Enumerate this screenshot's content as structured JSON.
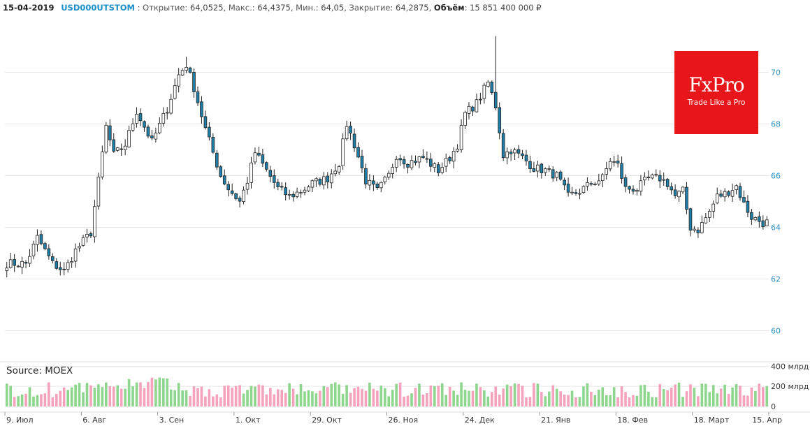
{
  "header": {
    "date": "15-04-2019",
    "ticker": "USD000UTSTOM",
    "open_label": "Открытие:",
    "open": "64,0525",
    "high_label": "Макс.:",
    "high": "64,4375",
    "low_label": "Мин.:",
    "low": "64,05",
    "close_label": "Закрытие:",
    "close": "64,2875",
    "volume_label": "Объём",
    "volume": "15 851 400 000 ₽"
  },
  "logo": {
    "brand": "FxPro",
    "tagline": "Trade Like a Pro"
  },
  "source": "Source: MOEX",
  "colors": {
    "up": "#ffffff",
    "down": "#1f7fa8",
    "vol_up": "#8ed68e",
    "vol_down": "#f5a3bd",
    "axis_text": "#2b8fc6",
    "grid": "#e6e6e6",
    "logo_bg": "#e8151b"
  },
  "chart_data": {
    "type": "candlestick",
    "price_ylim": [
      59.5,
      71.5
    ],
    "volume_ylim": [
      0,
      430
    ],
    "y_ticks": [
      {
        "value": 60,
        "label": "60"
      },
      {
        "value": 62,
        "label": "62"
      },
      {
        "value": 64,
        "label": "64"
      },
      {
        "value": 66,
        "label": "66"
      },
      {
        "value": 68,
        "label": "68"
      },
      {
        "value": 70,
        "label": "70"
      }
    ],
    "volume_ticks": [
      {
        "value": 400,
        "label": "400 млрд"
      },
      {
        "value": 200,
        "label": "200 млрд"
      },
      {
        "value": 0,
        "label": "0"
      }
    ],
    "x_ticks": [
      {
        "index": 0,
        "label": "9. Июл"
      },
      {
        "index": 20,
        "label": "6. Авг"
      },
      {
        "index": 40,
        "label": "3. Сен"
      },
      {
        "index": 60,
        "label": "1. Окт"
      },
      {
        "index": 80,
        "label": "29. Окт"
      },
      {
        "index": 100,
        "label": "26. Ноя"
      },
      {
        "index": 120,
        "label": "24. Дек"
      },
      {
        "index": 140,
        "label": "21. Янв"
      },
      {
        "index": 160,
        "label": "18. Фев"
      },
      {
        "index": 180,
        "label": "18. Март"
      },
      {
        "index": 200,
        "label": "15. Апр"
      }
    ],
    "anchors": [
      [
        0,
        62.6
      ],
      [
        5,
        62.6
      ],
      [
        8,
        63.6
      ],
      [
        12,
        62.6
      ],
      [
        15,
        62.3
      ],
      [
        18,
        63.1
      ],
      [
        22,
        63.8
      ],
      [
        24,
        65.8
      ],
      [
        26,
        67.9
      ],
      [
        28,
        66.8
      ],
      [
        31,
        67.2
      ],
      [
        34,
        68.5
      ],
      [
        38,
        67.3
      ],
      [
        42,
        68.6
      ],
      [
        45,
        69.9
      ],
      [
        47,
        70.3
      ],
      [
        49,
        69.4
      ],
      [
        52,
        67.8
      ],
      [
        56,
        66.0
      ],
      [
        58,
        65.5
      ],
      [
        61,
        65.0
      ],
      [
        63,
        65.8
      ],
      [
        65,
        66.9
      ],
      [
        68,
        66.2
      ],
      [
        71,
        65.5
      ],
      [
        74,
        65.2
      ],
      [
        77,
        65.4
      ],
      [
        80,
        65.7
      ],
      [
        84,
        65.9
      ],
      [
        87,
        66.5
      ],
      [
        89,
        68.0
      ],
      [
        91,
        67.2
      ],
      [
        94,
        65.8
      ],
      [
        97,
        65.4
      ],
      [
        100,
        66.0
      ],
      [
        102,
        66.8
      ],
      [
        105,
        66.5
      ],
      [
        109,
        66.7
      ],
      [
        113,
        66.2
      ],
      [
        116,
        66.7
      ],
      [
        118,
        67.2
      ],
      [
        120,
        68.4
      ],
      [
        123,
        68.8
      ],
      [
        126,
        69.6
      ],
      [
        128,
        68.7
      ],
      [
        130,
        66.8
      ],
      [
        132,
        67.0
      ],
      [
        135,
        66.7
      ],
      [
        138,
        66.3
      ],
      [
        141,
        66.2
      ],
      [
        144,
        66.0
      ],
      [
        147,
        65.2
      ],
      [
        150,
        65.4
      ],
      [
        153,
        65.7
      ],
      [
        156,
        65.9
      ],
      [
        158,
        66.6
      ],
      [
        160,
        66.4
      ],
      [
        162,
        65.5
      ],
      [
        165,
        65.5
      ],
      [
        168,
        65.9
      ],
      [
        171,
        65.9
      ],
      [
        173,
        65.7
      ],
      [
        175,
        65.2
      ],
      [
        177,
        65.4
      ],
      [
        179,
        64.0
      ],
      [
        181,
        63.9
      ],
      [
        184,
        64.6
      ],
      [
        186,
        65.2
      ],
      [
        188,
        65.3
      ],
      [
        191,
        65.6
      ],
      [
        193,
        64.9
      ],
      [
        195,
        64.4
      ],
      [
        199,
        64.1
      ]
    ],
    "last_candle": {
      "open": 64.0525,
      "high": 64.4375,
      "low": 64.05,
      "close": 64.2875,
      "volume_rub": 15851400000
    }
  }
}
